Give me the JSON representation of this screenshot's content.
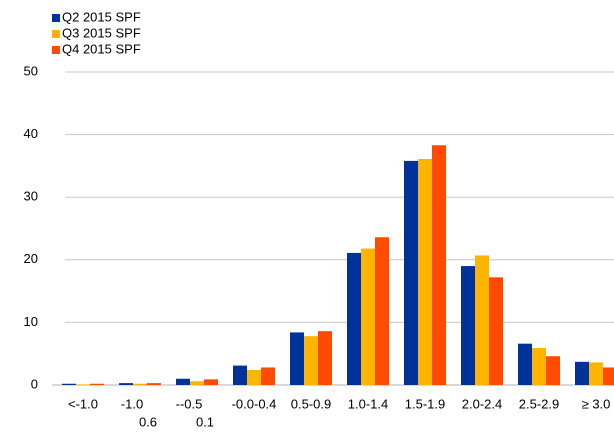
{
  "chart_data": {
    "type": "bar",
    "categories": [
      "<-1.0",
      [
        "-1.0",
        "0.6"
      ],
      [
        "--0.5",
        "0.1"
      ],
      "-0.0-0.4",
      "0.5-0.9",
      "1.0-1.4",
      "1.5-1.9",
      "2.0-2.4",
      "2.5-2.9",
      "≥ 3.0"
    ],
    "series": [
      {
        "name": "Q2 2015 SPF",
        "color": "#003399",
        "values": [
          0.2,
          0.3,
          1.0,
          3.1,
          8.4,
          21.1,
          35.8,
          19.0,
          6.6,
          3.7
        ]
      },
      {
        "name": "Q3 2015 SPF",
        "color": "#ffb400",
        "values": [
          0.1,
          0.2,
          0.6,
          2.4,
          7.8,
          21.8,
          36.1,
          20.7,
          5.9,
          3.6
        ]
      },
      {
        "name": "Q4 2015 SPF",
        "color": "#ff4b00",
        "values": [
          0.2,
          0.3,
          0.9,
          2.8,
          8.6,
          23.6,
          38.3,
          17.2,
          4.6,
          2.8
        ]
      }
    ],
    "ylim": [
      0,
      50
    ],
    "yticks": [
      0,
      10,
      20,
      30,
      40,
      50
    ],
    "grid": true
  }
}
